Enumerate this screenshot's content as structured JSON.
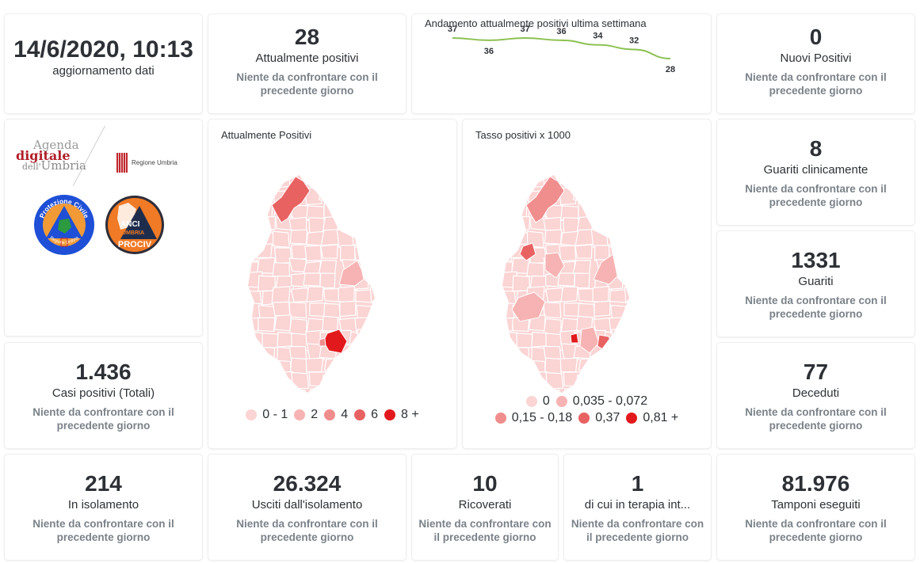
{
  "date_card": {
    "value": "14/6/2020, 10:13",
    "label": "aggiornamento dati"
  },
  "compare_text": "Niente da confrontare con il precedente giorno",
  "kpis": {
    "attualmente_positivi": {
      "value": "28",
      "label": "Attualmente positivi"
    },
    "nuovi_positivi": {
      "value": "0",
      "label": "Nuovi Positivi"
    },
    "guariti_clinicamente": {
      "value": "8",
      "label": "Guariti clinicamente"
    },
    "guariti": {
      "value": "1331",
      "label": "Guariti"
    },
    "casi_totali": {
      "value": "1.436",
      "label": "Casi positivi (Totali)"
    },
    "deceduti": {
      "value": "77",
      "label": "Deceduti"
    },
    "isolamento": {
      "value": "214",
      "label": "In isolamento"
    },
    "usciti": {
      "value": "26.324",
      "label": "Usciti dall'isolamento"
    },
    "ricoverati": {
      "value": "10",
      "label": "Ricoverati"
    },
    "terapia": {
      "value": "1",
      "label": "di cui in terapia int..."
    },
    "tamponi": {
      "value": "81.976",
      "label": "Tamponi eseguiti"
    }
  },
  "logos": {
    "agenda": {
      "line1": "Agenda",
      "line2": "digitale",
      "line3a": "dell'",
      "line3b": "Umbria"
    },
    "regione": "Regione Umbria",
    "protezione": {
      "top": "Protezione Civile",
      "bottom": "Regione Umbria"
    },
    "anci": {
      "l1": "ANCI",
      "l2": "UMBRIA",
      "l3": "PROCIV"
    }
  },
  "map1": {
    "title": "Attualmente Positivi",
    "legend": [
      {
        "label": "0 - 1",
        "color": "#fbd4d4"
      },
      {
        "label": "2",
        "color": "#f7b3b3"
      },
      {
        "label": "4",
        "color": "#f08d8d"
      },
      {
        "label": "6",
        "color": "#e86262"
      },
      {
        "label": "8 +",
        "color": "#e2191c"
      }
    ]
  },
  "map2": {
    "title": "Tasso positivi x 1000",
    "legend_row1": [
      {
        "label": "0",
        "color": "#fbd4d4"
      },
      {
        "label": "0,035 - 0,072",
        "color": "#f7b3b3"
      }
    ],
    "legend_row2": [
      {
        "label": "0,15 - 0,18",
        "color": "#f08d8d"
      },
      {
        "label": "0,37",
        "color": "#e86262"
      },
      {
        "label": "0,81 +",
        "color": "#e2191c"
      }
    ]
  },
  "chart_data": {
    "type": "line",
    "title": "Andamento attualmente positivi ultima settimana",
    "xlabel": "",
    "ylabel": "",
    "x": [
      1,
      2,
      3,
      4,
      5,
      6,
      7
    ],
    "series": [
      {
        "name": "Attualmente positivi",
        "values": [
          37,
          36,
          37,
          36,
          34,
          32,
          28
        ],
        "color": "#8cc152"
      }
    ],
    "data_labels": [
      "37",
      "36",
      "37",
      "36",
      "34",
      "32",
      "28"
    ],
    "grid": false,
    "legend": "none"
  }
}
